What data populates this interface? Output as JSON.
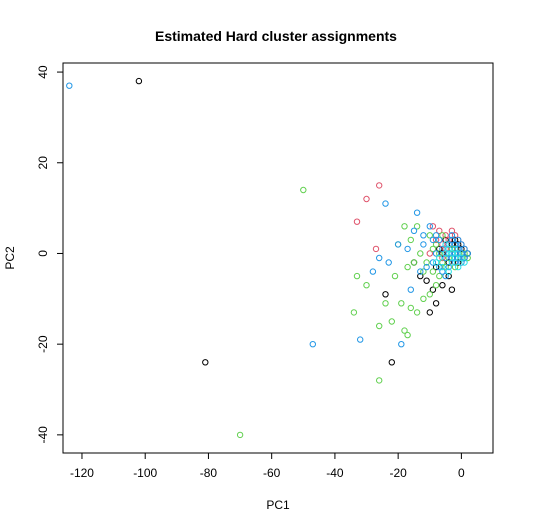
{
  "chart_data": {
    "type": "scatter",
    "title": "Estimated Hard cluster assignments",
    "xlabel": "PC1",
    "ylabel": "PC2",
    "xlim": [
      -126,
      10
    ],
    "ylim": [
      -44,
      42
    ],
    "x_ticks": [
      -120,
      -100,
      -80,
      -60,
      -40,
      -20,
      0
    ],
    "y_ticks": [
      -40,
      -20,
      0,
      20,
      40
    ],
    "grid": false,
    "legend": "none",
    "marker": "open-circle",
    "colors": {
      "black": "#000000",
      "red": "#df536b",
      "green": "#61d04f",
      "blue": "#2297e6",
      "cyan": "#28e2e5"
    },
    "series": [
      {
        "color": "black",
        "points": [
          [
            -102,
            38
          ],
          [
            -81,
            -24
          ],
          [
            -22,
            -24
          ],
          [
            -10,
            -13
          ],
          [
            -24,
            -9
          ],
          [
            -13,
            -5
          ],
          [
            -8,
            -3
          ],
          [
            -6,
            -7
          ],
          [
            -9,
            -8
          ],
          [
            -4,
            -5
          ],
          [
            -3,
            -8
          ],
          [
            -15,
            -2
          ],
          [
            -7,
            1
          ],
          [
            -5,
            3
          ],
          [
            -3,
            2
          ],
          [
            -2,
            0
          ],
          [
            -1,
            -2
          ],
          [
            0,
            1
          ],
          [
            1,
            -1
          ],
          [
            2,
            0
          ],
          [
            -4,
            -2
          ],
          [
            -6,
            0
          ],
          [
            -2,
            3
          ],
          [
            -1,
            2
          ],
          [
            -11,
            -6
          ],
          [
            -8,
            -11
          ]
        ]
      },
      {
        "color": "red",
        "points": [
          [
            -26,
            15
          ],
          [
            -30,
            12
          ],
          [
            -33,
            7
          ],
          [
            -27,
            1
          ],
          [
            -9,
            6
          ],
          [
            -7,
            5
          ],
          [
            -5,
            4
          ],
          [
            -3,
            5
          ],
          [
            -6,
            2
          ],
          [
            -4,
            3
          ],
          [
            -2,
            4
          ],
          [
            -8,
            3
          ],
          [
            -1,
            3
          ],
          [
            0,
            2
          ],
          [
            -3,
            1
          ],
          [
            -5,
            1
          ],
          [
            -2,
            1
          ],
          [
            1,
            1
          ],
          [
            -1,
            0
          ],
          [
            0,
            -1
          ],
          [
            -10,
            0
          ],
          [
            -6,
            -1
          ]
        ]
      },
      {
        "color": "green",
        "points": [
          [
            -70,
            -40
          ],
          [
            -50,
            14
          ],
          [
            -33,
            -5
          ],
          [
            -34,
            -13
          ],
          [
            -30,
            -7
          ],
          [
            -26,
            -16
          ],
          [
            -24,
            -11
          ],
          [
            -22,
            -15
          ],
          [
            -21,
            -5
          ],
          [
            -18,
            -17
          ],
          [
            -17,
            -18
          ],
          [
            -19,
            -11
          ],
          [
            -26,
            -28
          ],
          [
            -16,
            -12
          ],
          [
            -14,
            -13
          ],
          [
            -12,
            -10
          ],
          [
            -10,
            -9
          ],
          [
            -8,
            -7
          ],
          [
            -9,
            -4
          ],
          [
            -12,
            -4
          ],
          [
            -15,
            -2
          ],
          [
            -17,
            -3
          ],
          [
            -11,
            -2
          ],
          [
            -7,
            -5
          ],
          [
            -5,
            -3
          ],
          [
            -13,
            0
          ],
          [
            -16,
            3
          ],
          [
            -18,
            6
          ],
          [
            -14,
            6
          ],
          [
            -10,
            4
          ],
          [
            -9,
            1
          ],
          [
            -7,
            0
          ],
          [
            -6,
            -2
          ],
          [
            -4,
            -1
          ],
          [
            -3,
            1
          ],
          [
            -2,
            -3
          ],
          [
            -1,
            -1
          ],
          [
            0,
            0
          ],
          [
            1,
            0
          ],
          [
            2,
            -1
          ],
          [
            -8,
            2
          ],
          [
            -6,
            4
          ],
          [
            -20,
            2
          ]
        ]
      },
      {
        "color": "blue",
        "points": [
          [
            -124,
            37
          ],
          [
            -47,
            -20
          ],
          [
            -32,
            -19
          ],
          [
            -24,
            11
          ],
          [
            -19,
            -20
          ],
          [
            -28,
            -4
          ],
          [
            -26,
            -1
          ],
          [
            -23,
            -2
          ],
          [
            -20,
            2
          ],
          [
            -17,
            1
          ],
          [
            -14,
            9
          ],
          [
            -15,
            5
          ],
          [
            -12,
            2
          ],
          [
            -12,
            4
          ],
          [
            -10,
            6
          ],
          [
            -8,
            0
          ],
          [
            -7,
            -3
          ],
          [
            -6,
            1
          ],
          [
            -5,
            -1
          ],
          [
            -4,
            0
          ],
          [
            -4,
            2
          ],
          [
            -3,
            -1
          ],
          [
            -3,
            3
          ],
          [
            -2,
            0
          ],
          [
            -2,
            2
          ],
          [
            -1,
            -1
          ],
          [
            -1,
            1
          ],
          [
            0,
            -2
          ],
          [
            0,
            0
          ],
          [
            0,
            2
          ],
          [
            1,
            -1
          ],
          [
            1,
            1
          ],
          [
            2,
            0
          ],
          [
            -9,
            -2
          ],
          [
            -11,
            -3
          ],
          [
            -13,
            -4
          ],
          [
            -16,
            -8
          ],
          [
            -6,
            -4
          ],
          [
            -5,
            -5
          ],
          [
            -7,
            3
          ],
          [
            -8,
            4
          ],
          [
            -9,
            3
          ],
          [
            -3,
            4
          ],
          [
            -2,
            -2
          ],
          [
            -4,
            -3
          ],
          [
            -1,
            3
          ]
        ]
      },
      {
        "color": "cyan",
        "points": [
          [
            -6,
            -3
          ],
          [
            -4,
            -4
          ],
          [
            -3,
            -2
          ],
          [
            -2,
            -1
          ],
          [
            -5,
            0
          ],
          [
            -1,
            -3
          ],
          [
            0,
            -1
          ],
          [
            1,
            -2
          ],
          [
            -3,
            0
          ],
          [
            -7,
            -1
          ],
          [
            -8,
            -2
          ],
          [
            -5,
            2
          ],
          [
            -4,
            1
          ],
          [
            -2,
            1
          ],
          [
            -1,
            0
          ]
        ]
      }
    ]
  }
}
